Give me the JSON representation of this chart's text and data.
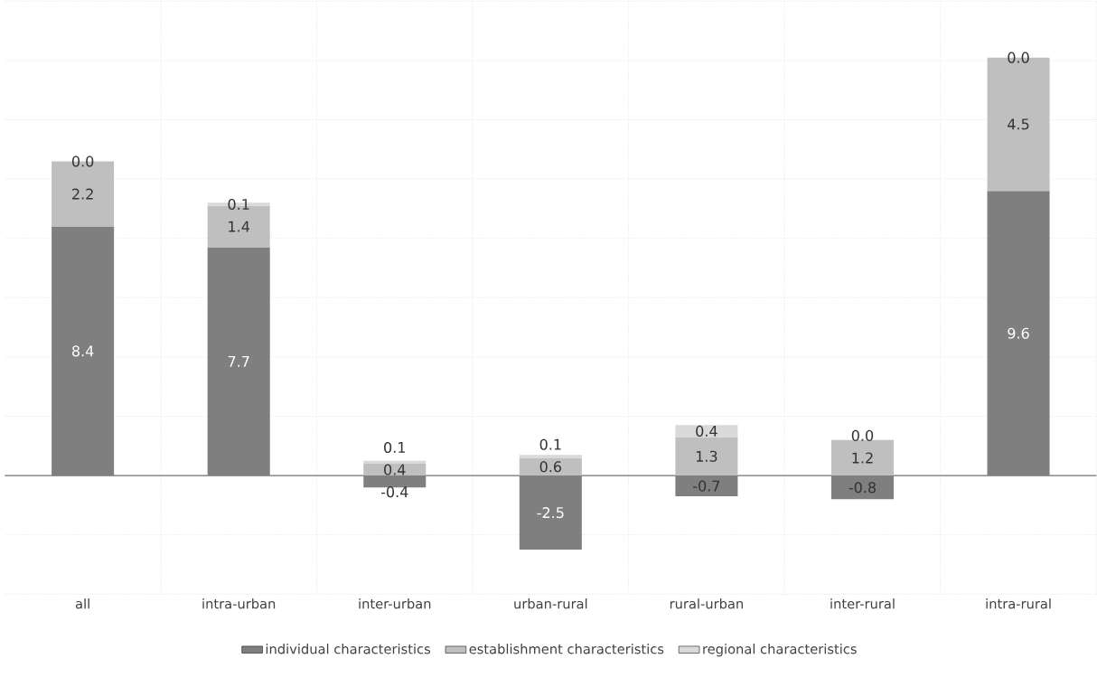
{
  "chart_data": {
    "type": "bar",
    "stacked": true,
    "categories": [
      "all",
      "intra-urban",
      "inter-urban",
      "urban-rural",
      "rural-urban",
      "inter-rural",
      "intra-rural"
    ],
    "series": [
      {
        "name": "individual characteristics",
        "color": "#7f7f7f",
        "values": [
          8.4,
          7.7,
          -0.4,
          -2.5,
          -0.7,
          -0.8,
          9.6
        ],
        "value_labels": [
          "8.4",
          "7.7",
          "-0.4",
          "-2.5",
          "-0.7",
          "-0.8",
          "9.6"
        ]
      },
      {
        "name": "establishment characteristics",
        "color": "#bfbfbf",
        "values": [
          2.2,
          1.4,
          0.4,
          0.6,
          1.3,
          1.2,
          4.5
        ],
        "value_labels": [
          "2.2",
          "1.4",
          "0.4",
          "0.6",
          "1.3",
          "1.2",
          "4.5"
        ]
      },
      {
        "name": "regional characteristics",
        "color": "#d9d9d9",
        "values": [
          0.0,
          0.1,
          0.1,
          0.1,
          0.4,
          0.0,
          0.0
        ],
        "value_labels": [
          "0.0",
          "0.1",
          "0.1",
          "0.1",
          "0.4",
          "0.0",
          "0.0"
        ]
      }
    ],
    "ylim": [
      -4,
      16
    ],
    "yticks": [
      {
        "value": -4,
        "label": null
      },
      {
        "value": -2,
        "label": null
      },
      {
        "value": 0,
        "label": null
      },
      {
        "value": 2,
        "label": null
      },
      {
        "value": 4,
        "label": null
      },
      {
        "value": 6,
        "label": null
      },
      {
        "value": 8,
        "label": null
      },
      {
        "value": 10,
        "label": null
      },
      {
        "value": 12,
        "label": null
      },
      {
        "value": 14,
        "label": null
      },
      {
        "value": 16,
        "label": null
      }
    ],
    "tick_labels": "x",
    "grid": true,
    "legend": "bottom"
  }
}
